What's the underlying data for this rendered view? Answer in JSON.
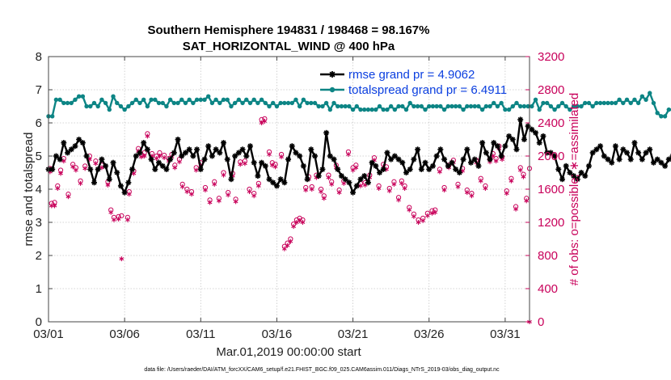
{
  "colors": {
    "rmse": "#000000",
    "spread": "#0d8585",
    "obs": "#c8005a",
    "legend_text": "#0b3fe0",
    "grid": "#c8c8c8"
  },
  "chart_data": {
    "type": "line",
    "title_line1": "Southern Hemisphere 194831 / 198468 = 98.167%",
    "title_line2": "SAT_HORIZONTAL_WIND @ 400 hPa",
    "xlabel": "Mar.01,2019 00:00:00 start",
    "ylabel_left": "rmse and totalspread",
    "ylabel_right": "# of obs: o=possible; ∗=assimilated",
    "footer": "data file: /Users/raeder/DAI/ATM_forcXX/CAM6_setup/f.e21.FHIST_BGC.f09_025.CAM6assim.011/Diags_NTrS_2019-03/obs_diag_output.nc",
    "xlim": [
      0,
      31.6
    ],
    "ylim_left": [
      0,
      8
    ],
    "ylim_right": [
      0,
      3200
    ],
    "x_ticks": [
      0,
      5,
      10,
      15,
      20,
      25,
      30
    ],
    "x_tick_labels": [
      "03/01",
      "03/06",
      "03/11",
      "03/16",
      "03/21",
      "03/26",
      "03/31"
    ],
    "y_ticks_left": [
      0,
      1,
      2,
      3,
      4,
      5,
      6,
      7,
      8
    ],
    "y_tick_labels_left": [
      "0",
      "1",
      "2",
      "3",
      "4",
      "5",
      "6",
      "7",
      "8"
    ],
    "y_ticks_right": [
      0,
      400,
      800,
      1200,
      1600,
      2000,
      2400,
      2800,
      3200
    ],
    "y_tick_labels_right": [
      "0",
      "400",
      "800",
      "1200",
      "1600",
      "2000",
      "2400",
      "2800",
      "3200"
    ],
    "legend": {
      "rmse_label": "rmse grand pr = 4.9062",
      "spread_label": "totalspread grand pr = 6.4911"
    },
    "x_start": 0.0,
    "x_step": 0.25,
    "series": [
      {
        "name": "rmse",
        "values": [
          4.6,
          4.6,
          5.0,
          4.9,
          5.4,
          5.1,
          5.2,
          5.3,
          5.5,
          5.4,
          5.0,
          4.6,
          4.2,
          4.6,
          4.9,
          4.7,
          4.3,
          4.8,
          4.5,
          4.1,
          3.9,
          4.2,
          4.6,
          5.0,
          5.1,
          5.4,
          5.2,
          4.9,
          4.6,
          4.8,
          4.7,
          4.6,
          4.9,
          5.1,
          5.5,
          5.0,
          5.1,
          5.2,
          5.0,
          5.2,
          4.6,
          4.9,
          5.3,
          5.0,
          5.2,
          5.1,
          5.4,
          4.9,
          4.3,
          5.0,
          5.1,
          5.2,
          5.0,
          5.3,
          4.8,
          4.4,
          4.8,
          4.7,
          4.3,
          4.2,
          4.1,
          4.3,
          4.2,
          4.9,
          5.3,
          5.1,
          5.0,
          4.7,
          4.3,
          5.2,
          5.0,
          4.4,
          4.6,
          5.7,
          5.0,
          4.9,
          4.6,
          4.4,
          4.3,
          4.2,
          3.9,
          4.1,
          4.3,
          4.4,
          4.2,
          4.8,
          4.7,
          4.5,
          4.6,
          5.1,
          4.9,
          5.0,
          4.9,
          4.8,
          4.5,
          4.6,
          4.9,
          5.2,
          4.6,
          4.8,
          4.6,
          4.7,
          5.0,
          5.2,
          4.9,
          4.7,
          4.8,
          4.6,
          4.5,
          4.9,
          5.2,
          4.8,
          4.9,
          4.7,
          5.4,
          5.1,
          4.9,
          5.4,
          5.3,
          5.0,
          5.3,
          5.6,
          5.5,
          5.2,
          6.1,
          5.5,
          5.9,
          5.8,
          5.7,
          5.4,
          5.6,
          5.1,
          5.1,
          5.0,
          4.6,
          4.3,
          4.7,
          4.5,
          4.4,
          4.3,
          4.5,
          4.4,
          4.7,
          5.1,
          5.2,
          5.3,
          5.0,
          4.9,
          4.8,
          5.3,
          4.9,
          5.2,
          5.1,
          4.9,
          5.4,
          5.1,
          4.9,
          5.1,
          5.2,
          4.8,
          4.9,
          4.8,
          4.7,
          4.9,
          5.0,
          4.8,
          4.7,
          4.8,
          4.9,
          5.0,
          5.0
        ],
        "color": "#000000",
        "marker": "asterisk"
      },
      {
        "name": "totalspread",
        "values": [
          6.2,
          6.2,
          6.7,
          6.7,
          6.6,
          6.6,
          6.6,
          6.7,
          6.8,
          6.8,
          6.5,
          6.5,
          6.6,
          6.5,
          6.7,
          6.6,
          6.4,
          6.8,
          6.6,
          6.5,
          6.4,
          6.5,
          6.6,
          6.7,
          6.6,
          6.7,
          6.5,
          6.7,
          6.7,
          6.6,
          6.6,
          6.5,
          6.7,
          6.6,
          6.6,
          6.7,
          6.6,
          6.7,
          6.6,
          6.7,
          6.7,
          6.7,
          6.8,
          6.6,
          6.7,
          6.6,
          6.7,
          6.7,
          6.5,
          6.6,
          6.7,
          6.6,
          6.7,
          6.6,
          6.7,
          6.6,
          6.7,
          6.6,
          6.5,
          6.6,
          6.5,
          6.6,
          6.6,
          6.6,
          6.6,
          6.7,
          6.5,
          6.7,
          6.6,
          6.6,
          6.6,
          6.5,
          6.5,
          6.6,
          6.4,
          6.6,
          6.5,
          6.5,
          6.5,
          6.5,
          6.4,
          6.5,
          6.4,
          6.4,
          6.4,
          6.4,
          6.4,
          6.5,
          6.4,
          6.4,
          6.5,
          6.4,
          6.5,
          6.5,
          6.4,
          6.6,
          6.5,
          6.5,
          6.5,
          6.4,
          6.5,
          6.5,
          6.5,
          6.5,
          6.4,
          6.5,
          6.5,
          6.5,
          6.5,
          6.4,
          6.5,
          6.5,
          6.5,
          6.5,
          6.4,
          6.5,
          6.5,
          6.6,
          6.5,
          6.6,
          6.4,
          6.4,
          6.5,
          6.6,
          6.5,
          6.5,
          6.5,
          6.5,
          6.7,
          6.4,
          6.6,
          6.6,
          6.5,
          6.4,
          6.5,
          6.6,
          6.5,
          6.4,
          6.5,
          6.5,
          6.5,
          6.6,
          6.6,
          6.5,
          6.6,
          6.6,
          6.6,
          6.6,
          6.6,
          6.6,
          6.7,
          6.6,
          6.7,
          6.6,
          6.7,
          6.6,
          6.8,
          6.7,
          6.9,
          6.6,
          6.3,
          6.2,
          6.2,
          6.4,
          6.4,
          6.4
        ],
        "color": "#0d8585",
        "marker": "dot"
      }
    ],
    "obs_possible": [
      [
        0.1,
        1850
      ],
      [
        0.2,
        1430
      ],
      [
        0.4,
        1440
      ],
      [
        0.6,
        1640
      ],
      [
        0.8,
        1830
      ],
      [
        1.0,
        1970
      ],
      [
        1.3,
        1540
      ],
      [
        1.6,
        1900
      ],
      [
        1.8,
        1860
      ],
      [
        2.1,
        1700
      ],
      [
        2.4,
        1880
      ],
      [
        2.7,
        2000
      ],
      [
        3.1,
        1940
      ],
      [
        3.5,
        1890
      ],
      [
        3.9,
        1690
      ],
      [
        4.1,
        1350
      ],
      [
        4.3,
        1260
      ],
      [
        4.6,
        1270
      ],
      [
        4.8,
        1280
      ],
      [
        5.2,
        1260
      ],
      [
        5.3,
        1570
      ],
      [
        5.6,
        1820
      ],
      [
        5.9,
        2090
      ],
      [
        6.1,
        2020
      ],
      [
        6.3,
        2040
      ],
      [
        6.5,
        2270
      ],
      [
        6.8,
        2030
      ],
      [
        7.1,
        2000
      ],
      [
        7.3,
        2040
      ],
      [
        7.6,
        2010
      ],
      [
        7.9,
        1970
      ],
      [
        8.1,
        2020
      ],
      [
        8.3,
        1890
      ],
      [
        8.6,
        1960
      ],
      [
        8.8,
        1660
      ],
      [
        9.1,
        1600
      ],
      [
        9.4,
        1570
      ],
      [
        9.7,
        1860
      ],
      [
        10.0,
        1920
      ],
      [
        10.3,
        1620
      ],
      [
        10.6,
        1470
      ],
      [
        10.9,
        1690
      ],
      [
        11.2,
        1490
      ],
      [
        11.5,
        1800
      ],
      [
        11.8,
        1560
      ],
      [
        12.1,
        1790
      ],
      [
        12.3,
        1480
      ],
      [
        12.6,
        1930
      ],
      [
        12.9,
        1940
      ],
      [
        13.2,
        1600
      ],
      [
        13.5,
        1550
      ],
      [
        13.8,
        1670
      ],
      [
        14.0,
        2440
      ],
      [
        14.2,
        2450
      ],
      [
        14.5,
        2050
      ],
      [
        14.7,
        1920
      ],
      [
        14.9,
        1900
      ],
      [
        15.3,
        2020
      ],
      [
        15.5,
        910
      ],
      [
        15.7,
        950
      ],
      [
        15.9,
        1000
      ],
      [
        16.1,
        1180
      ],
      [
        16.3,
        1230
      ],
      [
        16.5,
        1250
      ],
      [
        16.7,
        1230
      ],
      [
        16.9,
        1620
      ],
      [
        17.1,
        1750
      ],
      [
        17.3,
        1630
      ],
      [
        17.6,
        1770
      ],
      [
        17.9,
        1600
      ],
      [
        18.1,
        1520
      ],
      [
        18.4,
        1770
      ],
      [
        18.6,
        1690
      ],
      [
        18.9,
        1890
      ],
      [
        19.1,
        1590
      ],
      [
        19.4,
        1700
      ],
      [
        19.7,
        2050
      ],
      [
        20.0,
        1860
      ],
      [
        20.2,
        1890
      ],
      [
        20.5,
        1670
      ],
      [
        20.8,
        1680
      ],
      [
        21.1,
        1770
      ],
      [
        21.4,
        1980
      ],
      [
        21.7,
        1640
      ],
      [
        22.0,
        1900
      ],
      [
        22.2,
        1870
      ],
      [
        22.4,
        1610
      ],
      [
        22.7,
        1690
      ],
      [
        23.0,
        1500
      ],
      [
        23.2,
        1700
      ],
      [
        23.4,
        1640
      ],
      [
        23.7,
        1380
      ],
      [
        24.0,
        1300
      ],
      [
        24.3,
        1230
      ],
      [
        24.6,
        1250
      ],
      [
        24.9,
        1310
      ],
      [
        25.2,
        1340
      ],
      [
        25.4,
        1350
      ],
      [
        25.7,
        1840
      ],
      [
        26.0,
        1620
      ],
      [
        26.3,
        1890
      ],
      [
        26.6,
        1950
      ],
      [
        26.9,
        1660
      ],
      [
        27.2,
        1850
      ],
      [
        27.5,
        1590
      ],
      [
        27.8,
        1550
      ],
      [
        28.1,
        1950
      ],
      [
        28.4,
        1730
      ],
      [
        28.7,
        1640
      ],
      [
        29.0,
        1960
      ],
      [
        29.2,
        2030
      ],
      [
        29.4,
        1970
      ],
      [
        29.6,
        2120
      ],
      [
        29.8,
        1990
      ],
      [
        30.1,
        1580
      ],
      [
        30.4,
        1730
      ],
      [
        30.7,
        1390
      ],
      [
        31.0,
        1860
      ],
      [
        31.2,
        1780
      ],
      [
        31.4,
        1490
      ],
      [
        31.6,
        1850
      ]
    ],
    "obs_assimilated": [
      [
        0.1,
        1810
      ],
      [
        0.2,
        1400
      ],
      [
        0.4,
        1400
      ],
      [
        0.6,
        1610
      ],
      [
        0.8,
        1790
      ],
      [
        1.0,
        1940
      ],
      [
        1.3,
        1510
      ],
      [
        1.6,
        1870
      ],
      [
        1.8,
        1830
      ],
      [
        2.1,
        1670
      ],
      [
        2.4,
        1850
      ],
      [
        2.7,
        1960
      ],
      [
        3.1,
        1910
      ],
      [
        3.5,
        1860
      ],
      [
        3.9,
        1650
      ],
      [
        4.1,
        1320
      ],
      [
        4.3,
        1230
      ],
      [
        4.6,
        1240
      ],
      [
        4.8,
        760
      ],
      [
        5.2,
        1230
      ],
      [
        5.3,
        1540
      ],
      [
        5.6,
        1790
      ],
      [
        5.9,
        2060
      ],
      [
        6.1,
        1990
      ],
      [
        6.3,
        2000
      ],
      [
        6.5,
        2240
      ],
      [
        6.8,
        2000
      ],
      [
        7.1,
        1970
      ],
      [
        7.3,
        2000
      ],
      [
        7.6,
        1980
      ],
      [
        7.9,
        1940
      ],
      [
        8.1,
        1990
      ],
      [
        8.3,
        1860
      ],
      [
        8.6,
        1930
      ],
      [
        8.8,
        1630
      ],
      [
        9.1,
        1570
      ],
      [
        9.4,
        1540
      ],
      [
        9.7,
        1830
      ],
      [
        10.0,
        1890
      ],
      [
        10.3,
        1590
      ],
      [
        10.6,
        1440
      ],
      [
        10.9,
        1660
      ],
      [
        11.2,
        1460
      ],
      [
        11.5,
        1770
      ],
      [
        11.8,
        1530
      ],
      [
        12.1,
        1760
      ],
      [
        12.3,
        1450
      ],
      [
        12.6,
        1900
      ],
      [
        12.9,
        1910
      ],
      [
        13.2,
        1570
      ],
      [
        13.5,
        1520
      ],
      [
        13.8,
        1640
      ],
      [
        14.0,
        2400
      ],
      [
        14.2,
        2420
      ],
      [
        14.5,
        2020
      ],
      [
        14.7,
        1890
      ],
      [
        14.9,
        1870
      ],
      [
        15.3,
        1990
      ],
      [
        15.5,
        880
      ],
      [
        15.7,
        920
      ],
      [
        15.9,
        970
      ],
      [
        16.1,
        1150
      ],
      [
        16.3,
        1200
      ],
      [
        16.5,
        1220
      ],
      [
        16.7,
        1200
      ],
      [
        16.9,
        1590
      ],
      [
        17.1,
        1720
      ],
      [
        17.3,
        1600
      ],
      [
        17.6,
        1740
      ],
      [
        17.9,
        1570
      ],
      [
        18.1,
        1490
      ],
      [
        18.4,
        1740
      ],
      [
        18.6,
        1660
      ],
      [
        18.9,
        1860
      ],
      [
        19.1,
        1560
      ],
      [
        19.4,
        1670
      ],
      [
        19.7,
        2020
      ],
      [
        20.0,
        1830
      ],
      [
        20.2,
        1860
      ],
      [
        20.5,
        1640
      ],
      [
        20.8,
        1650
      ],
      [
        21.1,
        1740
      ],
      [
        21.4,
        1950
      ],
      [
        21.7,
        1610
      ],
      [
        22.0,
        1870
      ],
      [
        22.2,
        1840
      ],
      [
        22.4,
        1580
      ],
      [
        22.7,
        1660
      ],
      [
        23.0,
        1470
      ],
      [
        23.2,
        1670
      ],
      [
        23.4,
        1610
      ],
      [
        23.7,
        1350
      ],
      [
        24.0,
        1270
      ],
      [
        24.3,
        1200
      ],
      [
        24.6,
        1220
      ],
      [
        24.9,
        1280
      ],
      [
        25.2,
        1310
      ],
      [
        25.4,
        1320
      ],
      [
        25.7,
        1810
      ],
      [
        26.0,
        1590
      ],
      [
        26.3,
        1860
      ],
      [
        26.6,
        1920
      ],
      [
        26.9,
        1630
      ],
      [
        27.2,
        1820
      ],
      [
        27.5,
        1560
      ],
      [
        27.8,
        1520
      ],
      [
        28.1,
        1920
      ],
      [
        28.4,
        1700
      ],
      [
        28.7,
        1610
      ],
      [
        29.0,
        1930
      ],
      [
        29.2,
        2000
      ],
      [
        29.4,
        1940
      ],
      [
        29.6,
        2090
      ],
      [
        29.8,
        1960
      ],
      [
        30.1,
        1550
      ],
      [
        30.4,
        1700
      ],
      [
        30.7,
        1360
      ],
      [
        31.0,
        1830
      ],
      [
        31.2,
        1750
      ],
      [
        31.4,
        1460
      ],
      [
        31.6,
        0
      ]
    ]
  }
}
